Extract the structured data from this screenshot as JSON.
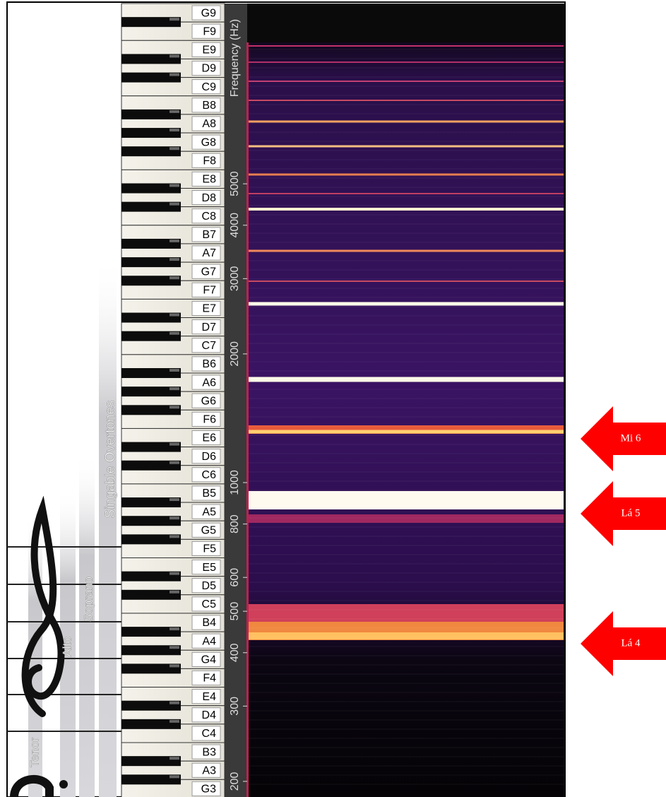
{
  "piano": {
    "notes": [
      "G9",
      "F9",
      "E9",
      "D9",
      "C9",
      "B8",
      "A8",
      "G8",
      "F8",
      "E8",
      "D8",
      "C8",
      "B7",
      "A7",
      "G7",
      "F7",
      "E7",
      "D7",
      "C7",
      "B6",
      "A6",
      "G6",
      "F6",
      "E6",
      "D6",
      "C6",
      "B5",
      "A5",
      "G5",
      "F5",
      "E5",
      "D5",
      "C5",
      "B4",
      "A4",
      "G4",
      "F4",
      "E4",
      "D4",
      "C4",
      "B3",
      "A3",
      "G3"
    ]
  },
  "frequency_axis": {
    "title": "Frequency (Hz)",
    "ticks": [
      "5000",
      "4000",
      "3000",
      "2000",
      "1000",
      "800",
      "600",
      "500",
      "400",
      "300",
      "200"
    ]
  },
  "voice_ranges": [
    "Tenor",
    "Alto",
    "Soprano",
    "Singable Overtones"
  ],
  "annotations": [
    "Mi 6",
    "Lá 5",
    "Lá 4"
  ]
}
